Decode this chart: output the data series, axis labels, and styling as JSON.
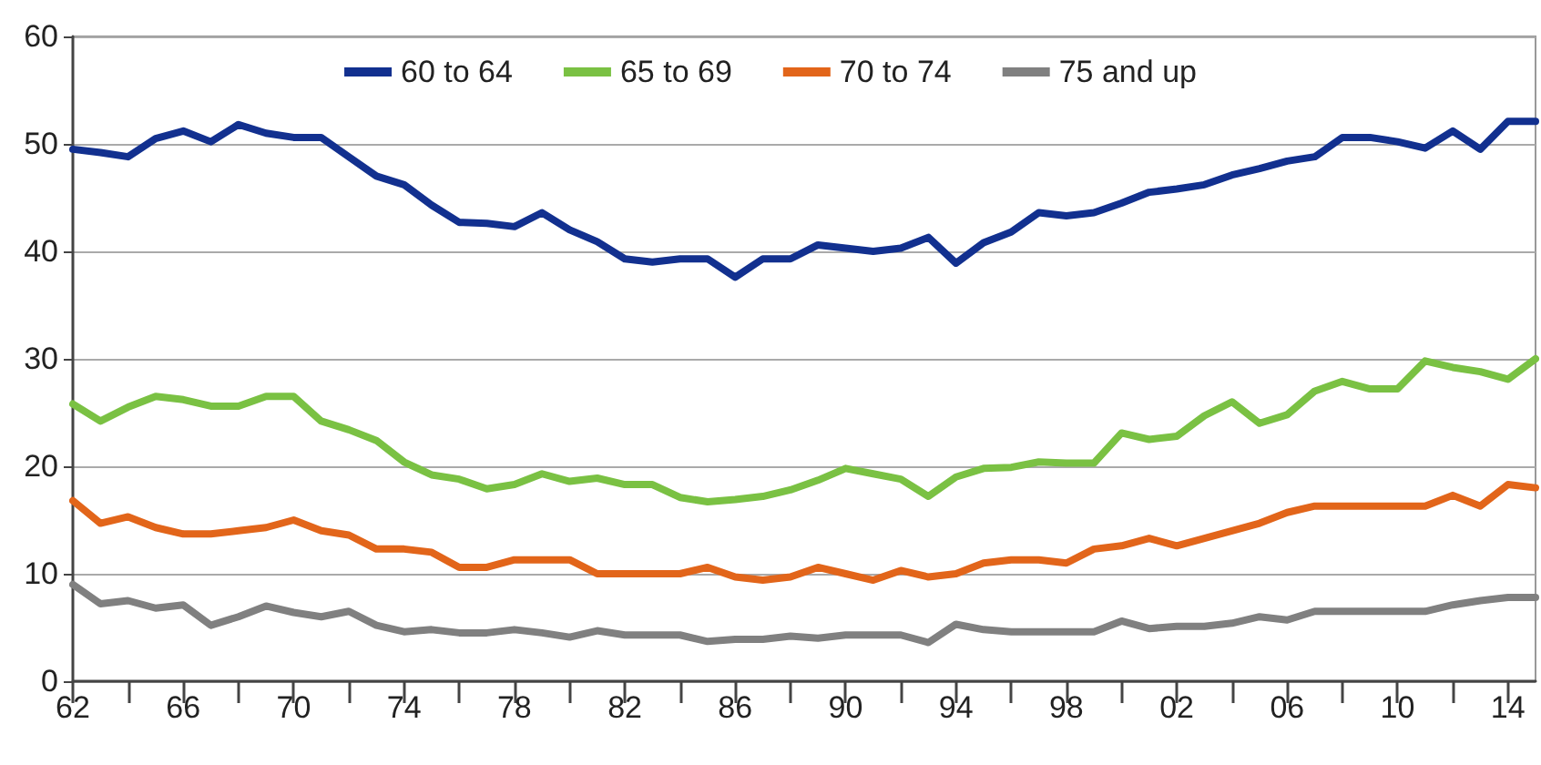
{
  "chart_data": {
    "type": "line",
    "x": [
      1962,
      1963,
      1964,
      1965,
      1966,
      1967,
      1968,
      1969,
      1970,
      1971,
      1972,
      1973,
      1974,
      1975,
      1976,
      1977,
      1978,
      1979,
      1980,
      1981,
      1982,
      1983,
      1984,
      1985,
      1986,
      1987,
      1988,
      1989,
      1990,
      1991,
      1992,
      1993,
      1994,
      1995,
      1996,
      1997,
      1998,
      1999,
      2000,
      2001,
      2002,
      2003,
      2004,
      2005,
      2006,
      2007,
      2008,
      2009,
      2010,
      2011,
      2012,
      2013,
      2014,
      2015
    ],
    "series": [
      {
        "name": "60 to 64",
        "color": "#12308f",
        "values": [
          49.5,
          49.2,
          48.8,
          50.5,
          51.2,
          50.2,
          51.8,
          51.0,
          50.6,
          50.6,
          48.8,
          47.0,
          46.2,
          44.3,
          42.7,
          42.6,
          42.3,
          43.6,
          42.0,
          40.9,
          39.3,
          39.0,
          39.3,
          39.3,
          37.6,
          39.3,
          39.3,
          40.6,
          40.3,
          40.0,
          40.3,
          41.3,
          38.9,
          40.8,
          41.8,
          43.6,
          43.3,
          43.6,
          44.5,
          45.5,
          45.8,
          46.2,
          47.1,
          47.7,
          48.4,
          48.8,
          50.6,
          50.6,
          50.2,
          49.6,
          51.2,
          49.5,
          52.1,
          52.1
        ]
      },
      {
        "name": "65 to 69",
        "color": "#7ac143",
        "values": [
          25.8,
          24.2,
          25.5,
          26.5,
          26.2,
          25.6,
          25.6,
          26.5,
          26.5,
          24.2,
          23.4,
          22.4,
          20.4,
          19.2,
          18.8,
          17.9,
          18.3,
          19.3,
          18.6,
          18.9,
          18.3,
          18.3,
          17.1,
          16.7,
          16.9,
          17.2,
          17.8,
          18.7,
          19.8,
          19.3,
          18.8,
          17.2,
          19.0,
          19.8,
          19.9,
          20.4,
          20.3,
          20.3,
          23.1,
          22.5,
          22.8,
          24.7,
          26.0,
          24.0,
          24.8,
          27.0,
          27.9,
          27.2,
          27.2,
          29.8,
          29.2,
          28.8,
          28.1,
          30.0
        ]
      },
      {
        "name": "70 to 74",
        "color": "#e2651a",
        "values": [
          16.8,
          14.7,
          15.3,
          14.3,
          13.7,
          13.7,
          14.0,
          14.3,
          15.0,
          14.0,
          13.6,
          12.3,
          12.3,
          12.0,
          10.6,
          10.6,
          11.3,
          11.3,
          11.3,
          10.0,
          10.0,
          10.0,
          10.0,
          10.6,
          9.7,
          9.4,
          9.7,
          10.6,
          10.0,
          9.4,
          10.3,
          9.7,
          10.0,
          11.0,
          11.3,
          11.3,
          11.0,
          12.3,
          12.6,
          13.3,
          12.6,
          13.3,
          14.0,
          14.7,
          15.7,
          16.3,
          16.3,
          16.3,
          16.3,
          16.3,
          17.3,
          16.3,
          18.3,
          18.0
        ]
      },
      {
        "name": "75 and up",
        "color": "#808080",
        "values": [
          9.0,
          7.2,
          7.5,
          6.8,
          7.1,
          5.2,
          6.0,
          7.0,
          6.4,
          6.0,
          6.5,
          5.2,
          4.6,
          4.8,
          4.5,
          4.5,
          4.8,
          4.5,
          4.1,
          4.7,
          4.3,
          4.3,
          4.3,
          3.7,
          3.9,
          3.9,
          4.2,
          4.0,
          4.3,
          4.3,
          4.3,
          3.6,
          5.3,
          4.8,
          4.6,
          4.6,
          4.6,
          4.6,
          5.6,
          4.9,
          5.1,
          5.1,
          5.4,
          6.0,
          5.7,
          6.5,
          6.5,
          6.5,
          6.5,
          6.5,
          7.1,
          7.5,
          7.8,
          7.8
        ]
      }
    ],
    "xlim": [
      1962,
      2015
    ],
    "xticks": [
      {
        "value": 1962,
        "label": "62"
      },
      {
        "value": 1964,
        "label": null
      },
      {
        "value": 1966,
        "label": "66"
      },
      {
        "value": 1968,
        "label": null
      },
      {
        "value": 1970,
        "label": "70"
      },
      {
        "value": 1972,
        "label": null
      },
      {
        "value": 1974,
        "label": "74"
      },
      {
        "value": 1976,
        "label": null
      },
      {
        "value": 1978,
        "label": "78"
      },
      {
        "value": 1980,
        "label": null
      },
      {
        "value": 1982,
        "label": "82"
      },
      {
        "value": 1984,
        "label": null
      },
      {
        "value": 1986,
        "label": "86"
      },
      {
        "value": 1988,
        "label": null
      },
      {
        "value": 1990,
        "label": "90"
      },
      {
        "value": 1992,
        "label": null
      },
      {
        "value": 1994,
        "label": "94"
      },
      {
        "value": 1996,
        "label": null
      },
      {
        "value": 1998,
        "label": "98"
      },
      {
        "value": 2000,
        "label": null
      },
      {
        "value": 2002,
        "label": "02"
      },
      {
        "value": 2004,
        "label": null
      },
      {
        "value": 2006,
        "label": "06"
      },
      {
        "value": 2008,
        "label": null
      },
      {
        "value": 2010,
        "label": "10"
      },
      {
        "value": 2012,
        "label": null
      },
      {
        "value": 2014,
        "label": "14"
      }
    ],
    "ylim": [
      0,
      60
    ],
    "yticks": [
      0,
      10,
      20,
      30,
      40,
      50,
      60
    ],
    "grid": "y",
    "legend": "top",
    "marker": "none",
    "line_style": "solid"
  }
}
